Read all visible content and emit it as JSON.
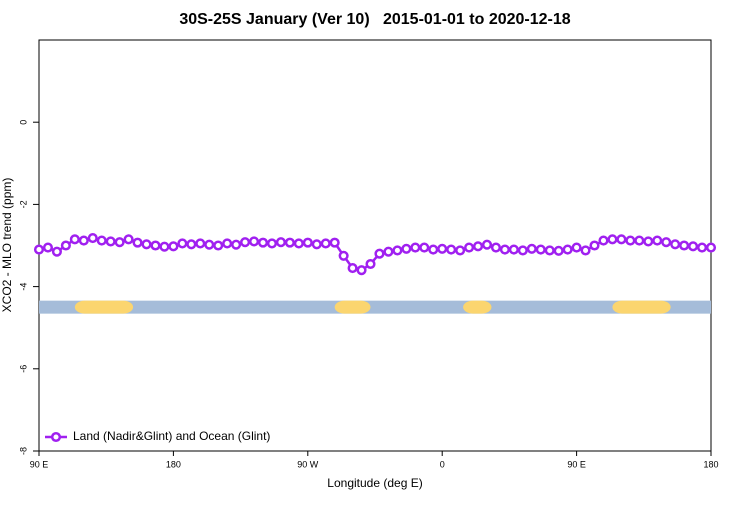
{
  "chart_data": {
    "type": "line",
    "title": "30S-25S January (Ver 10)   2015-01-01 to 2020-12-18",
    "x_label": "Longitude (deg E)",
    "y_label": "XCO2 - MLO trend (ppm)",
    "xlim": [
      90,
      540
    ],
    "xticks": [
      {
        "value": 90,
        "label": "90 E"
      },
      180,
      {
        "value": 270,
        "label": "90 W"
      },
      {
        "value": 360,
        "label": "0"
      },
      {
        "value": 450,
        "label": "90 E"
      },
      {
        "value": 540,
        "label": "180"
      }
    ],
    "ylim": [
      -8,
      2
    ],
    "yticks": [
      -8,
      -6,
      -4,
      -2,
      0
    ],
    "legend": "bottom-left",
    "x": [
      90,
      96,
      102,
      108,
      114,
      120,
      126,
      132,
      138,
      144,
      150,
      156,
      162,
      168,
      174,
      180,
      186,
      192,
      198,
      204,
      210,
      216,
      222,
      228,
      234,
      240,
      246,
      252,
      258,
      264,
      270,
      276,
      282,
      288,
      294,
      300,
      306,
      312,
      318,
      324,
      330,
      336,
      342,
      348,
      354,
      360,
      366,
      372,
      378,
      384,
      390,
      396,
      402,
      408,
      414,
      420,
      426,
      432,
      438,
      444,
      450,
      456,
      462,
      468,
      474,
      480,
      486,
      492,
      498,
      504,
      510,
      516,
      522,
      528,
      534,
      540
    ],
    "series": [
      {
        "name": "Land (Nadir&Glint) and Ocean (Glint)",
        "color": "#a020f0",
        "values": [
          -3.1,
          -3.05,
          -3.15,
          -3.0,
          -2.85,
          -2.88,
          -2.82,
          -2.88,
          -2.9,
          -2.92,
          -2.85,
          -2.93,
          -2.97,
          -3.0,
          -3.03,
          -3.02,
          -2.95,
          -2.97,
          -2.95,
          -2.98,
          -3.0,
          -2.95,
          -2.98,
          -2.92,
          -2.9,
          -2.93,
          -2.95,
          -2.92,
          -2.93,
          -2.95,
          -2.93,
          -2.97,
          -2.95,
          -2.93,
          -3.25,
          -3.55,
          -3.6,
          -3.45,
          -3.2,
          -3.15,
          -3.12,
          -3.08,
          -3.05,
          -3.05,
          -3.1,
          -3.08,
          -3.1,
          -3.12,
          -3.05,
          -3.02,
          -2.98,
          -3.05,
          -3.1,
          -3.1,
          -3.12,
          -3.08,
          -3.1,
          -3.12,
          -3.13,
          -3.1,
          -3.05,
          -3.12,
          -3.0,
          -2.88,
          -2.85,
          -2.85,
          -2.88,
          -2.88,
          -2.9,
          -2.88,
          -2.92,
          -2.97,
          -3.0,
          -3.02,
          -3.05,
          -3.05
        ]
      }
    ],
    "surface": {
      "y": -4.5,
      "ocean_color": "#a5bcd9",
      "land_color": "#fbd56f",
      "land_segments": [
        [
          114,
          153
        ],
        [
          288,
          312
        ],
        [
          374,
          393
        ],
        [
          474,
          513
        ]
      ]
    }
  }
}
